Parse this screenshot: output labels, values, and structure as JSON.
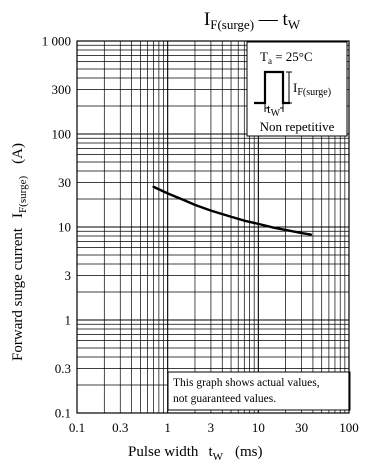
{
  "chart_data": {
    "type": "line",
    "title": {
      "main": "I",
      "main_sub": "F(surge)",
      "sep": " — ",
      "var": "t",
      "var_sub": "W"
    },
    "xlabel": {
      "text": "Pulse width",
      "var": "t",
      "var_sub": "W",
      "unit": "(ms)"
    },
    "ylabel": {
      "text": "Forward surge current",
      "var": "I",
      "var_sub": "F(surge)",
      "unit": "(A)"
    },
    "x_scale": "log",
    "y_scale": "log",
    "xlim": [
      0.1,
      100
    ],
    "ylim": [
      0.1,
      1000
    ],
    "grid": true,
    "x_ticks": [
      {
        "value": 0.1,
        "label": "0.1"
      },
      {
        "value": 0.3,
        "label": "0.3"
      },
      {
        "value": 1,
        "label": "1"
      },
      {
        "value": 3,
        "label": "3"
      },
      {
        "value": 10,
        "label": "10"
      },
      {
        "value": 30,
        "label": "30"
      },
      {
        "value": 100,
        "label": "100"
      }
    ],
    "y_ticks": [
      {
        "value": 0.1,
        "label": "0.1"
      },
      {
        "value": 0.3,
        "label": "0.3"
      },
      {
        "value": 1,
        "label": "1"
      },
      {
        "value": 3,
        "label": "3"
      },
      {
        "value": 10,
        "label": "10"
      },
      {
        "value": 30,
        "label": "30"
      },
      {
        "value": 100,
        "label": "100"
      },
      {
        "value": 300,
        "label": "300"
      },
      {
        "value": 1000,
        "label": "1 000"
      }
    ],
    "series": [
      {
        "x": [
          0.7,
          1,
          1.5,
          2,
          3,
          5,
          7,
          10,
          15,
          20,
          30,
          38
        ],
        "y": [
          27,
          23,
          19.5,
          17.3,
          15,
          12.9,
          11.7,
          10.8,
          9.8,
          9.3,
          8.6,
          8.3
        ]
      }
    ],
    "inset": {
      "condition": "T",
      "condition_sub": "a",
      "condition_value": " = 25°C",
      "pulse_height_label": "I",
      "pulse_height_sub": "F(surge)",
      "pulse_width_label": "t",
      "pulse_width_sub": "W",
      "mode": "Non repetitive"
    },
    "note": [
      "This graph shows actual values,",
      "not guaranteed values."
    ]
  }
}
